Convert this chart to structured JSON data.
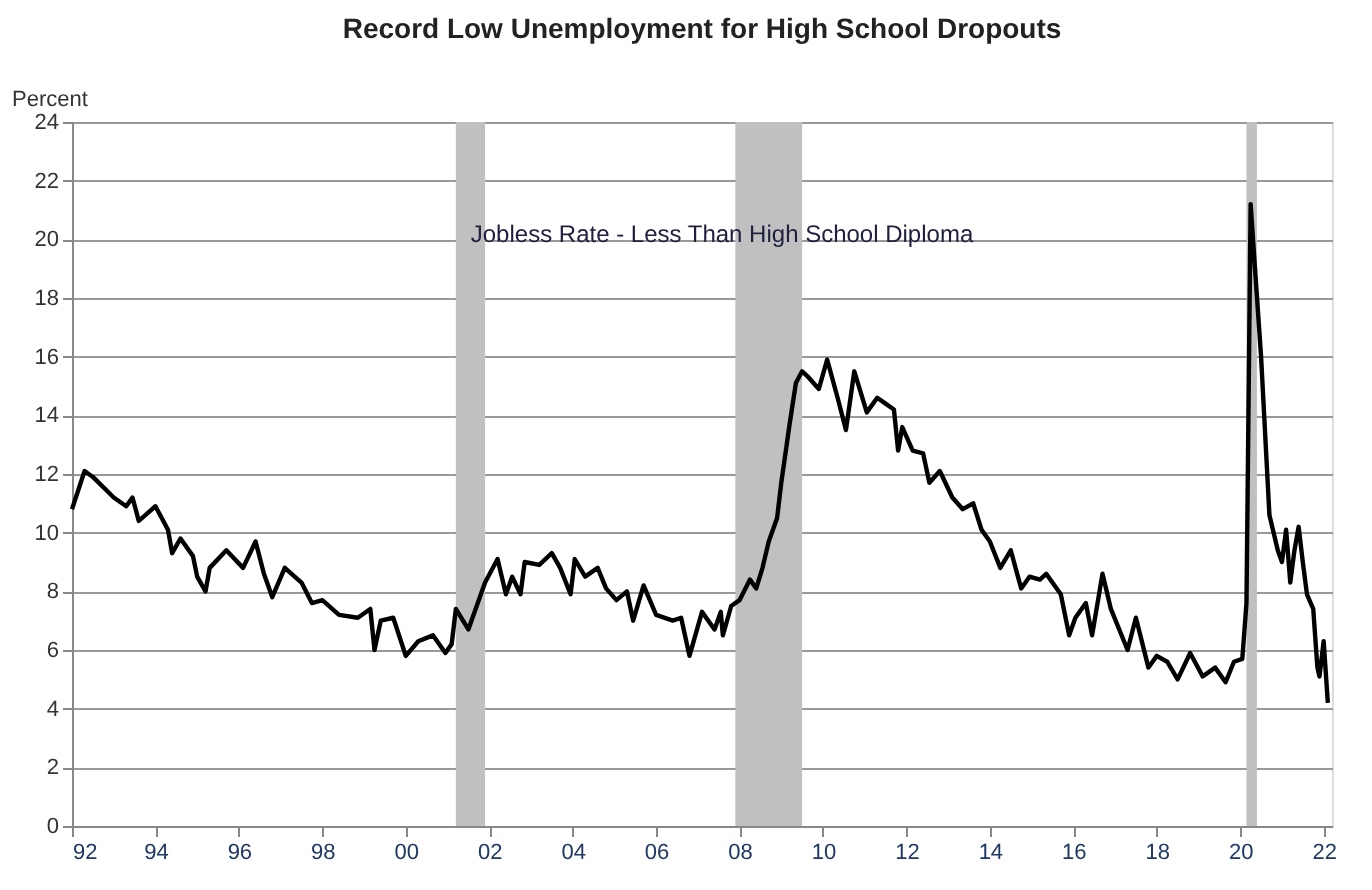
{
  "chart_data": {
    "type": "line",
    "title": "Record Low Unemployment for High School Dropouts",
    "ylabel": "Percent",
    "annotations": [
      "Jobless Rate - Less Than High School Diploma"
    ],
    "x": [
      1992.0,
      1992.3,
      1992.5,
      1993.0,
      1993.3,
      1993.45,
      1993.6,
      1994.0,
      1994.3,
      1994.4,
      1994.6,
      1994.9,
      1995.0,
      1995.2,
      1995.3,
      1995.7,
      1996.1,
      1996.4,
      1996.6,
      1996.8,
      1997.1,
      1997.5,
      1997.75,
      1998.0,
      1998.4,
      1998.85,
      1999.15,
      1999.25,
      1999.4,
      1999.7,
      2000.0,
      2000.3,
      2000.65,
      2000.95,
      2001.1,
      2001.2,
      2001.5,
      2001.9,
      2002.2,
      2002.4,
      2002.55,
      2002.75,
      2002.85,
      2003.2,
      2003.5,
      2003.7,
      2003.95,
      2004.05,
      2004.3,
      2004.6,
      2004.8,
      2005.05,
      2005.3,
      2005.45,
      2005.7,
      2006.0,
      2006.4,
      2006.6,
      2006.8,
      2007.1,
      2007.4,
      2007.55,
      2007.6,
      2007.8,
      2008.0,
      2008.25,
      2008.4,
      2008.55,
      2008.7,
      2008.9,
      2009.0,
      2009.2,
      2009.35,
      2009.5,
      2009.65,
      2009.9,
      2010.1,
      2010.35,
      2010.55,
      2010.75,
      2011.05,
      2011.3,
      2011.5,
      2011.7,
      2011.8,
      2011.9,
      2012.15,
      2012.4,
      2012.55,
      2012.8,
      2013.1,
      2013.35,
      2013.6,
      2013.8,
      2014.0,
      2014.25,
      2014.5,
      2014.75,
      2014.95,
      2015.2,
      2015.35,
      2015.7,
      2015.9,
      2016.05,
      2016.3,
      2016.45,
      2016.7,
      2016.9,
      2017.3,
      2017.5,
      2017.8,
      2018.0,
      2018.25,
      2018.5,
      2018.8,
      2019.1,
      2019.4,
      2019.65,
      2019.85,
      2020.05,
      2020.15,
      2020.25,
      2020.35,
      2020.5,
      2020.7,
      2020.9,
      2021.0,
      2021.1,
      2021.2,
      2021.3,
      2021.4,
      2021.5,
      2021.6,
      2021.75,
      2021.85,
      2021.9,
      2022.0,
      2022.1
    ],
    "series": [
      {
        "color": "#000000",
        "values": [
          10.8,
          12.1,
          11.9,
          11.2,
          10.9,
          11.2,
          10.4,
          10.9,
          10.1,
          9.3,
          9.8,
          9.2,
          8.5,
          8.0,
          8.8,
          9.4,
          8.8,
          9.7,
          8.6,
          7.8,
          8.8,
          8.3,
          7.6,
          7.7,
          7.2,
          7.1,
          7.4,
          6.0,
          7.0,
          7.1,
          5.8,
          6.3,
          6.5,
          5.9,
          6.2,
          7.4,
          6.7,
          8.3,
          9.1,
          7.9,
          8.5,
          7.9,
          9.0,
          8.9,
          9.3,
          8.8,
          7.9,
          9.1,
          8.5,
          8.8,
          8.1,
          7.7,
          8.0,
          7.0,
          8.2,
          7.2,
          7.0,
          7.1,
          5.8,
          7.3,
          6.7,
          7.3,
          6.5,
          7.5,
          7.7,
          8.4,
          8.1,
          8.8,
          9.7,
          10.5,
          11.7,
          13.7,
          15.1,
          15.5,
          15.3,
          14.9,
          15.9,
          14.6,
          13.5,
          15.5,
          14.1,
          14.6,
          14.4,
          14.2,
          12.8,
          13.6,
          12.8,
          12.7,
          11.7,
          12.1,
          11.2,
          10.8,
          11.0,
          10.1,
          9.7,
          8.8,
          9.4,
          8.1,
          8.5,
          8.4,
          8.6,
          7.9,
          6.5,
          7.1,
          7.6,
          6.5,
          8.6,
          7.4,
          6.0,
          7.1,
          5.4,
          5.8,
          5.6,
          5.0,
          5.9,
          5.1,
          5.4,
          4.9,
          5.6,
          5.7,
          7.6,
          21.2,
          19.1,
          16.0,
          10.6,
          9.4,
          9.0,
          10.1,
          8.3,
          9.4,
          10.2,
          9.0,
          7.9,
          7.4,
          5.4,
          5.1,
          6.3,
          4.2
        ]
      }
    ],
    "xlim": [
      1992,
      2022.2
    ],
    "xticks": [
      {
        "value": 1992,
        "label": "92"
      },
      {
        "value": 1994,
        "label": "94"
      },
      {
        "value": 1996,
        "label": "96"
      },
      {
        "value": 1998,
        "label": "98"
      },
      {
        "value": 2000,
        "label": "00"
      },
      {
        "value": 2002,
        "label": "02"
      },
      {
        "value": 2004,
        "label": "04"
      },
      {
        "value": 2006,
        "label": "06"
      },
      {
        "value": 2008,
        "label": "08"
      },
      {
        "value": 2010,
        "label": "10"
      },
      {
        "value": 2012,
        "label": "12"
      },
      {
        "value": 2014,
        "label": "14"
      },
      {
        "value": 2016,
        "label": "16"
      },
      {
        "value": 2018,
        "label": "18"
      },
      {
        "value": 2020,
        "label": "20"
      },
      {
        "value": 2022,
        "label": "22"
      }
    ],
    "ylim": [
      0,
      24
    ],
    "yticks": [
      0,
      2,
      4,
      6,
      8,
      10,
      12,
      14,
      16,
      18,
      20,
      22,
      24
    ],
    "bands": [
      {
        "axis": "x",
        "from": 2001.2,
        "to": 2001.9,
        "color": "#c0c0c0"
      },
      {
        "axis": "x",
        "from": 2007.9,
        "to": 2009.5,
        "color": "#c0c0c0"
      },
      {
        "axis": "x",
        "from": 2020.15,
        "to": 2020.4,
        "color": "#c0c0c0"
      }
    ],
    "grid": "y",
    "marker": "none",
    "line_style": "solid"
  }
}
